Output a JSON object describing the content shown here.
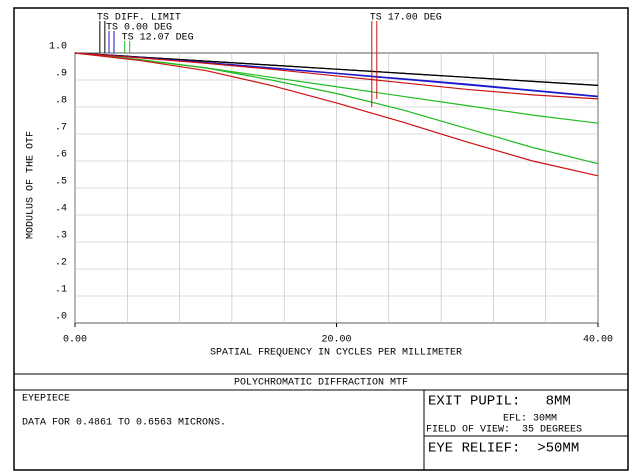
{
  "chart_data": {
    "type": "line",
    "xlabel": "SPATIAL FREQUENCY IN CYCLES PER MILLIMETER",
    "ylabel": "MODULUS OF THE OTF",
    "x": [
      0,
      5,
      10,
      15,
      20,
      25,
      30,
      35,
      40
    ],
    "xlim": [
      0,
      40
    ],
    "xticks": [
      {
        "value": 0,
        "label": "0.00"
      },
      {
        "value": 20,
        "label": "20.00"
      },
      {
        "value": 40,
        "label": "40.00"
      }
    ],
    "xgrid": [
      0,
      4,
      8,
      12,
      16,
      20,
      24,
      28,
      32,
      36,
      40
    ],
    "ylim": [
      0,
      1
    ],
    "yticks": [
      {
        "value": 0,
        "label": ".0"
      },
      {
        "value": 0.1,
        "label": ".1"
      },
      {
        "value": 0.2,
        "label": ".2"
      },
      {
        "value": 0.3,
        "label": ".3"
      },
      {
        "value": 0.4,
        "label": ".4"
      },
      {
        "value": 0.5,
        "label": ".5"
      },
      {
        "value": 0.6,
        "label": ".6"
      },
      {
        "value": 0.7,
        "label": ".7"
      },
      {
        "value": 0.8,
        "label": ".8"
      },
      {
        "value": 0.9,
        "label": ".9"
      },
      {
        "value": 1,
        "label": "1.0"
      }
    ],
    "grid": true,
    "series": [
      {
        "name": "TS DIFF. LIMIT",
        "color": "#000000",
        "legend_x": 1.9,
        "tangential": [
          1,
          0.985,
          0.97,
          0.955,
          0.94,
          0.925,
          0.91,
          0.895,
          0.88
        ],
        "sagittal": [
          1,
          0.985,
          0.97,
          0.955,
          0.94,
          0.925,
          0.91,
          0.895,
          0.88
        ]
      },
      {
        "name": "TS 0.00 DEG",
        "color": "#1a1acc",
        "legend_x": 2.6,
        "tangential": [
          1,
          0.983,
          0.965,
          0.945,
          0.925,
          0.905,
          0.885,
          0.862,
          0.84
        ],
        "sagittal": [
          1,
          0.983,
          0.964,
          0.944,
          0.924,
          0.903,
          0.882,
          0.86,
          0.838
        ]
      },
      {
        "name": "TS 12.07 DEG",
        "color": "#22bb22",
        "legend_x": 3.8,
        "tangential": [
          1,
          0.975,
          0.945,
          0.9,
          0.85,
          0.79,
          0.72,
          0.65,
          0.59
        ],
        "sagittal": [
          1,
          0.975,
          0.945,
          0.91,
          0.875,
          0.84,
          0.805,
          0.77,
          0.74
        ]
      },
      {
        "name": "TS 17.00 DEG",
        "color": "#cc1111",
        "legend_x": 22.7,
        "tangential": [
          1,
          0.972,
          0.935,
          0.88,
          0.815,
          0.745,
          0.67,
          0.6,
          0.545
        ],
        "sagittal": [
          1,
          0.982,
          0.962,
          0.94,
          0.915,
          0.89,
          0.865,
          0.845,
          0.83
        ]
      }
    ]
  },
  "title_block": {
    "title": "POLYCHROMATIC DIFFRACTION MTF",
    "lens": "EYEPIECE",
    "data_note": "DATA FOR 0.4861 TO 0.6563 MICRONS.",
    "exit_pupil": "EXIT PUPIL:   8MM",
    "efl": "EFL: 30MM",
    "field_of_view": "FIELD OF VIEW:  35 DEGREES",
    "eye_relief": "EYE RELIEF:  >50MM"
  }
}
